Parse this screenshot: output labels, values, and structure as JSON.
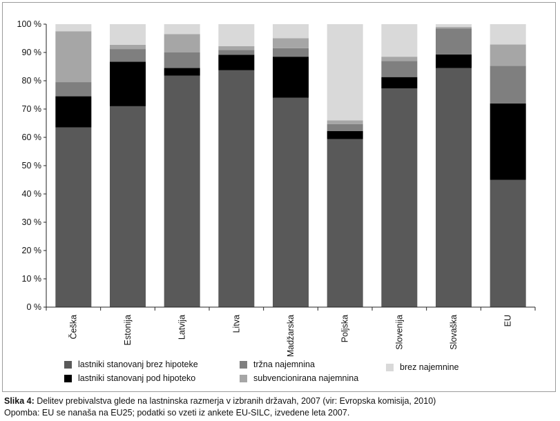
{
  "chart_data": {
    "type": "bar",
    "stacked": true,
    "categories": [
      "Češka",
      "Estonija",
      "Latvija",
      "Litva",
      "Madžarska",
      "Poljska",
      "Slovenija",
      "Slovaška",
      "EU"
    ],
    "series": [
      {
        "name": "lastniki stanovanj brez hipoteke",
        "color": "#595959",
        "values": [
          63.5,
          71.0,
          81.8,
          83.7,
          74.0,
          59.4,
          77.3,
          84.5,
          45.0
        ]
      },
      {
        "name": "lastniki stanovanj pod hipoteko",
        "color": "#000000",
        "values": [
          11.0,
          15.7,
          2.7,
          5.5,
          14.5,
          2.8,
          4.0,
          4.8,
          27.0
        ]
      },
      {
        "name": "tržna najemnina",
        "color": "#7f7f7f",
        "values": [
          5.0,
          4.5,
          5.5,
          1.7,
          3.0,
          2.5,
          5.7,
          9.2,
          13.3
        ]
      },
      {
        "name": "subvencionirana najemnina",
        "color": "#a6a6a6",
        "values": [
          18.0,
          1.5,
          6.5,
          1.3,
          3.5,
          1.3,
          1.5,
          0.5,
          7.5
        ]
      },
      {
        "name": "brez najemnine",
        "color": "#d9d9d9",
        "values": [
          2.5,
          7.3,
          3.5,
          7.8,
          5.0,
          34.0,
          11.5,
          1.0,
          7.2
        ]
      }
    ],
    "yticks": [
      "0 %",
      "10 %",
      "20 %",
      "30 %",
      "40 %",
      "50 %",
      "60 %",
      "70 %",
      "80 %",
      "90 %",
      "100 %"
    ],
    "ylim": [
      0,
      100
    ],
    "grid": false,
    "legend_position": "bottom"
  },
  "caption": {
    "bold": "Slika 4:",
    "line1": "Delitev prebivalstva glede na lastninska razmerja v izbranih državah, 2007 (vir: Evropska komisija, 2010)",
    "line2": "Opomba: EU se nanaša na EU25; podatki so vzeti iz ankete EU-SILC, izvedene leta 2007."
  }
}
